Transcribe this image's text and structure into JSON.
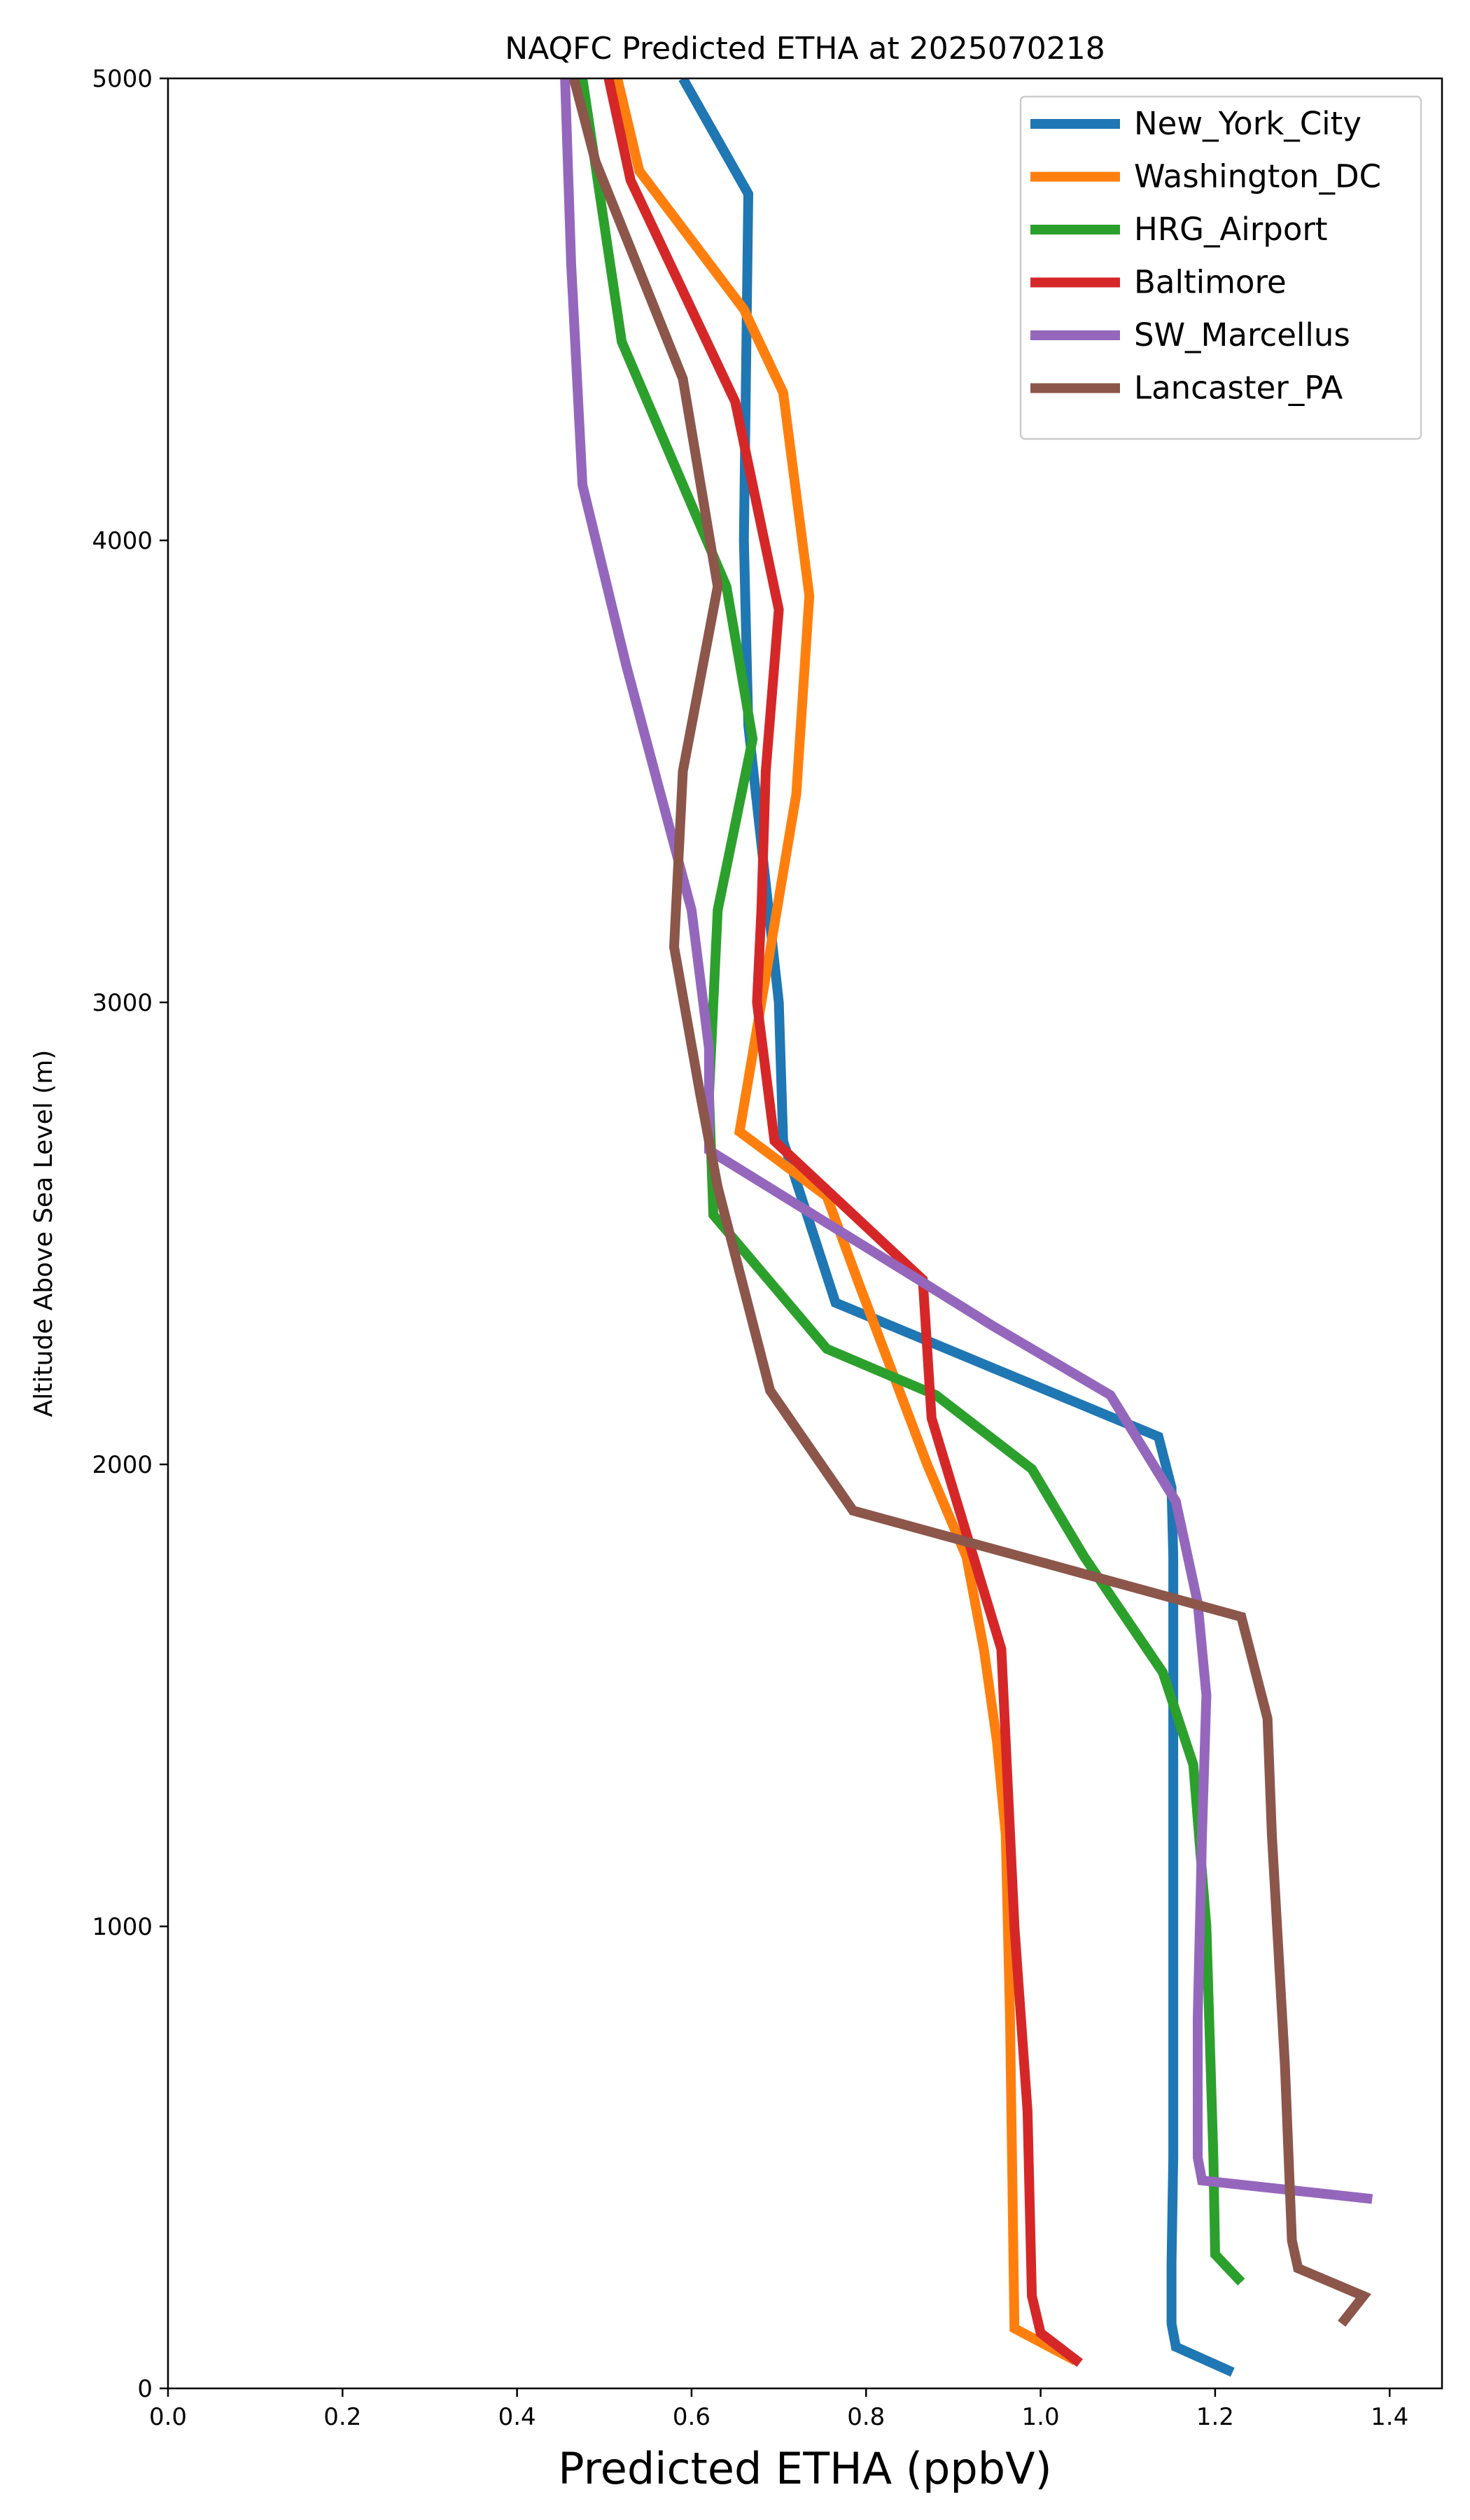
{
  "chart_data": {
    "type": "line",
    "title": "NAQFC Predicted ETHA at 2025070218",
    "xlabel": "Predicted ETHA (ppbV)",
    "ylabel": "Altitude Above Sea Level (m)",
    "xlim": [
      0.0,
      1.46
    ],
    "ylim": [
      0,
      5000
    ],
    "xticks": [
      0.0,
      0.2,
      0.4,
      0.6,
      0.8,
      1.0,
      1.2,
      1.4
    ],
    "xtick_labels": [
      "0.0",
      "0.2",
      "0.4",
      "0.6",
      "0.8",
      "1.0",
      "1.2",
      "1.4"
    ],
    "yticks": [
      0,
      1000,
      2000,
      3000,
      4000,
      5000
    ],
    "ytick_labels": [
      "0",
      "1000",
      "2000",
      "3000",
      "4000",
      "5000"
    ],
    "grid": false,
    "legend_position": "upper right",
    "series": [
      {
        "name": "New_York_City",
        "color": "#1f77b4",
        "x": [
          1.22,
          1.155,
          1.15,
          1.15,
          1.152,
          1.152,
          1.152,
          1.152,
          1.15,
          1.135,
          0.765,
          0.705,
          0.7,
          0.665,
          0.66,
          0.665,
          0.59
        ],
        "y": [
          35,
          90,
          140,
          270,
          500,
          1000,
          1500,
          1800,
          1950,
          2060,
          2350,
          2700,
          3000,
          3600,
          4000,
          4750,
          5000
        ]
      },
      {
        "name": "Washington_DC",
        "color": "#ff7f0e",
        "x": [
          1.04,
          0.97,
          0.968,
          0.965,
          0.96,
          0.95,
          0.935,
          0.915,
          0.87,
          0.79,
          0.755,
          0.655,
          0.68,
          0.72,
          0.735,
          0.705,
          0.66,
          0.54,
          0.515
        ],
        "y": [
          60,
          130,
          400,
          800,
          1200,
          1400,
          1600,
          1800,
          2000,
          2400,
          2580,
          2720,
          3000,
          3450,
          3880,
          4320,
          4500,
          4800,
          5000
        ]
      },
      {
        "name": "HRG_Airport",
        "color": "#2ca02c",
        "x": [
          1.23,
          1.2,
          1.198,
          1.19,
          1.175,
          1.14,
          1.05,
          0.99,
          0.88,
          0.755,
          0.625,
          0.62,
          0.63,
          0.67,
          0.64,
          0.52,
          0.475
        ],
        "y": [
          230,
          290,
          500,
          1000,
          1350,
          1550,
          1800,
          1990,
          2150,
          2250,
          2540,
          2800,
          3200,
          3570,
          3900,
          4430,
          5000
        ]
      },
      {
        "name": "Baltimore",
        "color": "#d62728",
        "x": [
          1.045,
          1.0,
          0.99,
          0.985,
          0.97,
          0.955,
          0.875,
          0.865,
          0.695,
          0.675,
          0.68,
          0.685,
          0.7,
          0.65,
          0.53,
          0.505
        ],
        "y": [
          55,
          120,
          200,
          600,
          1000,
          1600,
          2100,
          2400,
          2700,
          3000,
          3200,
          3500,
          3850,
          4300,
          4780,
          5000
        ]
      },
      {
        "name": "SW_Marcellus",
        "color": "#9467bd",
        "x": [
          1.38,
          1.185,
          1.18,
          1.18,
          1.185,
          1.19,
          1.18,
          1.155,
          1.08,
          0.945,
          0.86,
          0.62,
          0.62,
          0.6,
          0.525,
          0.475,
          0.462,
          0.455
        ],
        "y": [
          410,
          450,
          500,
          800,
          1200,
          1500,
          1700,
          1920,
          2150,
          2300,
          2400,
          2680,
          2900,
          3200,
          3730,
          4120,
          4600,
          5000
        ]
      },
      {
        "name": "Lancaster_PA",
        "color": "#8c564b",
        "x": [
          1.345,
          1.37,
          1.295,
          1.288,
          1.28,
          1.265,
          1.26,
          1.23,
          0.785,
          0.69,
          0.63,
          0.61,
          0.58,
          0.59,
          0.63,
          0.59,
          0.49,
          0.465
        ],
        "y": [
          140,
          200,
          260,
          320,
          700,
          1200,
          1450,
          1670,
          1900,
          2160,
          2600,
          2800,
          3120,
          3500,
          3900,
          4350,
          4820,
          5000
        ]
      }
    ]
  }
}
